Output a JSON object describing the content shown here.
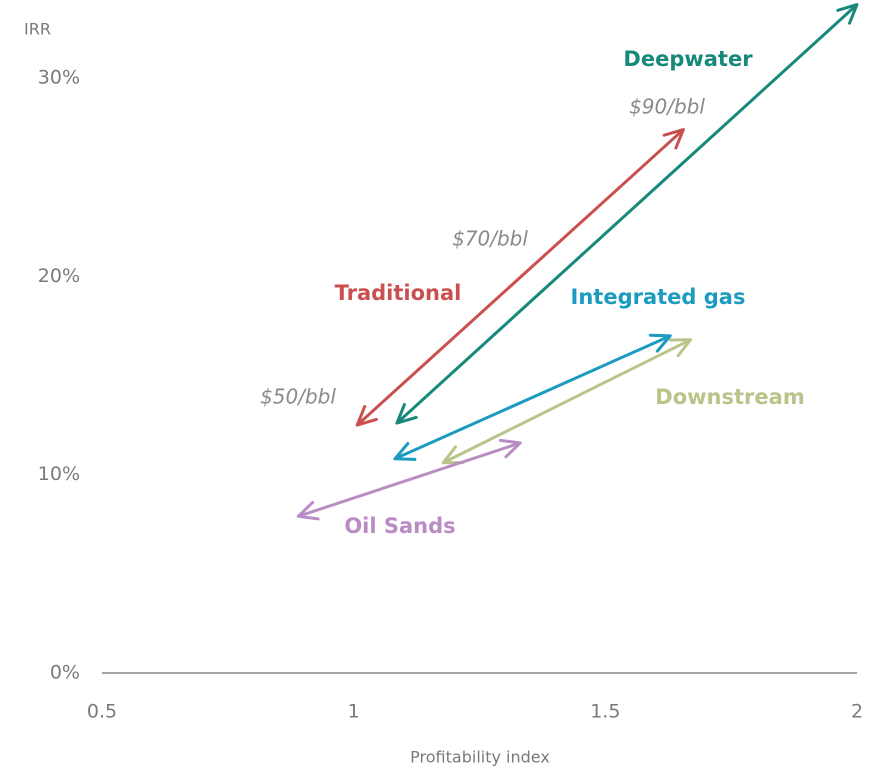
{
  "chart_data": {
    "type": "arrow",
    "ylabel": "IRR",
    "xlabel": "Profitability index",
    "xlim": [
      0.5,
      2
    ],
    "xticks": [
      0.5,
      1,
      1.5,
      2
    ],
    "ylim": [
      0,
      30
    ],
    "yticks": [
      {
        "value": 0,
        "label": "0%"
      },
      {
        "value": 10,
        "label": "10%"
      },
      {
        "value": 20,
        "label": "20%"
      },
      {
        "value": 30,
        "label": "30%"
      }
    ],
    "grid": false,
    "series": [
      {
        "name": "Deepwater",
        "color": "#16897a",
        "x": [
          1.086,
          2.0
        ],
        "values": [
          12.6,
          33.7
        ]
      },
      {
        "name": "Traditional",
        "color": "#c9504f",
        "x": [
          1.007,
          1.655
        ],
        "values": [
          12.5,
          27.4
        ]
      },
      {
        "name": "Integrated gas",
        "color": "#1b9bbf",
        "x": [
          1.082,
          1.629
        ],
        "values": [
          10.8,
          17.0
        ]
      },
      {
        "name": "Downstream",
        "color": "#b8c48a",
        "x": [
          1.178,
          1.669
        ],
        "values": [
          10.6,
          16.8
        ]
      },
      {
        "name": "Oil Sands",
        "color": "#b98cc4",
        "x": [
          0.89,
          1.331
        ],
        "values": [
          7.9,
          11.6
        ]
      }
    ],
    "annotations": [
      "$50/bbl",
      "$70/bbl",
      "$90/bbl"
    ]
  }
}
